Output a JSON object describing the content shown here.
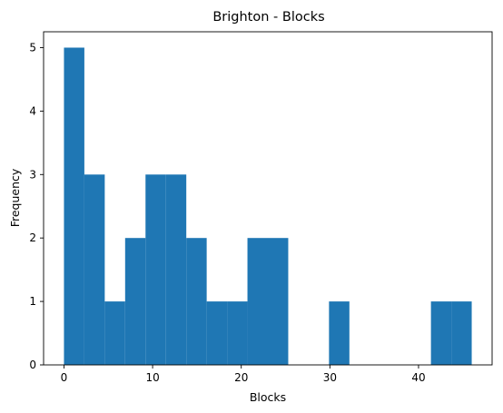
{
  "chart_data": {
    "type": "bar",
    "title": "Brighton - Blocks",
    "xlabel": "Blocks",
    "ylabel": "Frequency",
    "xlim": [
      -2.3,
      48.3
    ],
    "ylim": [
      0,
      5.25
    ],
    "xticks": [
      0,
      10,
      20,
      30,
      40
    ],
    "yticks": [
      0,
      1,
      2,
      3,
      4,
      5
    ],
    "bar_color": "#1f77b4",
    "grid": false,
    "bins": {
      "edges": [
        0,
        2.3,
        4.6,
        6.9,
        9.2,
        11.5,
        13.8,
        16.1,
        18.4,
        20.7,
        23.0,
        25.3,
        27.6,
        29.9,
        32.2,
        34.5,
        36.8,
        39.1,
        41.4,
        43.7,
        46.0
      ],
      "counts": [
        5,
        3,
        1,
        2,
        3,
        3,
        2,
        1,
        1,
        2,
        2,
        0,
        0,
        1,
        0,
        0,
        0,
        0,
        1,
        1
      ]
    }
  }
}
